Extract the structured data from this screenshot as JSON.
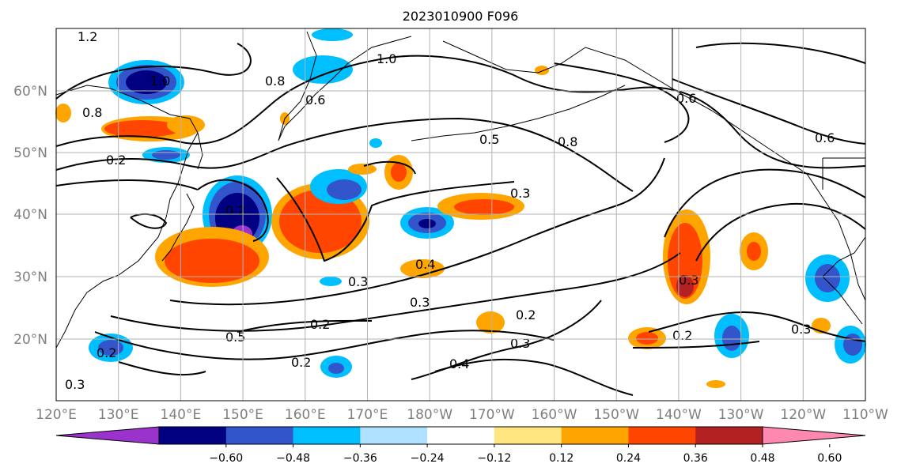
{
  "title": "2023010900 F096",
  "lat_labels": [
    "60°N",
    "50°N",
    "40°N",
    "30°N",
    "20°N"
  ],
  "lon_labels": [
    "120°E",
    "130°E",
    "140°E",
    "150°E",
    "160°E",
    "170°E",
    "180°W",
    "170°W",
    "160°W",
    "150°W",
    "140°W",
    "130°W",
    "120°W",
    "110°W"
  ],
  "colorbar": {
    "colors": [
      "#9933cc",
      "#000080",
      "#3355cc",
      "#00bfff",
      "#b0e0ff",
      "#ffffff",
      "#ffe680",
      "#ffa500",
      "#ff4500",
      "#b22222",
      "#ff88b0"
    ],
    "tick_labels": [
      "−0.60",
      "−0.48",
      "−0.36",
      "−0.24",
      "−0.12",
      "0.12",
      "0.24",
      "0.36",
      "0.48",
      "0.60"
    ]
  },
  "contour_labels": [
    "1.2",
    "1.0",
    "1.0",
    "0.8",
    "0.8",
    "0.6",
    "0.6",
    "0.6",
    "0.8",
    "0.5",
    "0.3",
    "0.2",
    "0.4",
    "0.3",
    "0.3",
    "0.2",
    "0.5",
    "0.2",
    "0.2",
    "0.3",
    "0.4",
    "0.3",
    "0.2",
    "0.2",
    "0.3",
    "0.2",
    "0.3"
  ]
}
